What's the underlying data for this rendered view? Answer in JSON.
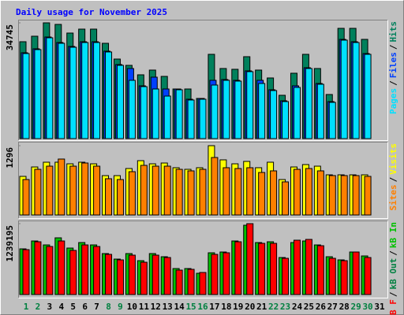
{
  "chart_data": [
    {
      "type": "bar",
      "title": "Daily usage for November 2025",
      "title_color": "#0000ff",
      "ylim": [
        0,
        34745
      ],
      "yticks": [
        34745
      ],
      "legend_separator": "/",
      "series": [
        {
          "name": "Hits",
          "color": "#00805c",
          "values": [
            29077,
            30732,
            34745,
            34278,
            31678,
            32860,
            32860,
            28604,
            23876,
            21985,
            19148,
            20567,
            18676,
            14893,
            14893,
            12056,
            25295,
            21040,
            20803,
            24586,
            20567,
            18203,
            13002,
            19621,
            25295,
            21040,
            13238,
            33096,
            33096,
            29786,
            null
          ]
        },
        {
          "name": "Files",
          "color": "#0040ff",
          "values": [
            25768,
            26950,
            30496,
            28841,
            27659,
            29077,
            29077,
            26240,
            22222,
            21040,
            15839,
            18440,
            14893,
            14893,
            11820,
            12056,
            17494,
            17731,
            17494,
            20330,
            17494,
            14657,
            11347,
            15839,
            21276,
            16548,
            11111,
            29786,
            29077,
            25531,
            null
          ]
        },
        {
          "name": "Pages",
          "color": "#00e0ff",
          "values": [
            25531,
            26713,
            30259,
            28604,
            27422,
            28841,
            28841,
            26004,
            21985,
            17494,
            15602,
            14893,
            12766,
            14657,
            11584,
            11820,
            16075,
            17494,
            17257,
            20094,
            16548,
            14420,
            11111,
            15366,
            21040,
            16312,
            10874,
            29550,
            28841,
            25295,
            null
          ]
        }
      ]
    },
    {
      "type": "bar",
      "ylim": [
        0,
        1296
      ],
      "yticks": [
        1296
      ],
      "legend_separator": "/",
      "series": [
        {
          "name": "Visits",
          "color": "#ffff00",
          "values": [
            722,
            898,
            987,
            987,
            957,
            987,
            957,
            736,
            736,
            869,
            1016,
            957,
            972,
            884,
            854,
            884,
            1296,
            1031,
            957,
            1002,
            884,
            987,
            663,
            898,
            943,
            913,
            751,
            751,
            751,
            751,
            null
          ]
        },
        {
          "name": "Sites",
          "color": "#ff8000",
          "values": [
            663,
            854,
            913,
            1046,
            913,
            972,
            913,
            678,
            663,
            810,
            928,
            913,
            913,
            854,
            825,
            854,
            1075,
            884,
            869,
            884,
            795,
            825,
            619,
            854,
            869,
            825,
            737,
            737,
            737,
            722,
            null
          ]
        }
      ]
    },
    {
      "type": "bar",
      "ylim": [
        0,
        1239195
      ],
      "yticks": [
        1239195
      ],
      "legend_separator": "/",
      "categories": [
        "1",
        "2",
        "3",
        "4",
        "5",
        "6",
        "7",
        "8",
        "9",
        "10",
        "11",
        "12",
        "13",
        "14",
        "15",
        "16",
        "17",
        "18",
        "19",
        "20",
        "21",
        "22",
        "23",
        "24",
        "25",
        "26",
        "27",
        "28",
        "29",
        "30",
        "31"
      ],
      "category_colors": [
        "#008040",
        "#008040",
        "#000000",
        "#000000",
        "#000000",
        "#000000",
        "#000000",
        "#008040",
        "#008040",
        "#000000",
        "#000000",
        "#000000",
        "#000000",
        "#000000",
        "#008040",
        "#008040",
        "#000000",
        "#000000",
        "#000000",
        "#000000",
        "#000000",
        "#008040",
        "#008040",
        "#000000",
        "#000000",
        "#000000",
        "#000000",
        "#000000",
        "#008040",
        "#008040",
        "#000000"
      ],
      "series": [
        {
          "name": "kB In",
          "color": "#00c000",
          "values": [
            798602,
            936292,
            867447,
            991368,
            812371,
            908754,
            867447,
            715988,
            619605,
            715988,
            592067,
            715988,
            660912,
            454377,
            454377,
            371763,
            729757,
            743526,
            936292,
            1211672,
            908754,
            922523,
            647143,
            908754,
            936292,
            867447,
            660912,
            605836,
            743526,
            674681,
            null
          ]
        },
        {
          "name": "kB Out",
          "color": "#008040",
          "values": [
            null,
            null,
            null,
            null,
            null,
            null,
            null,
            null,
            null,
            null,
            null,
            null,
            null,
            null,
            null,
            null,
            null,
            null,
            null,
            null,
            null,
            null,
            null,
            null,
            null,
            null,
            null,
            null,
            null,
            null,
            null
          ]
        },
        {
          "name": "kB F",
          "color": "#ff0000",
          "values": [
            784833,
            922523,
            839909,
            936292,
            771064,
            867447,
            839909,
            702219,
            605836,
            688450,
            564529,
            688450,
            647143,
            426839,
            440608,
            385532,
            702219,
            729757,
            922523,
            1239195,
            894985,
            894985,
            633374,
            950061,
            963830,
            853678,
            633374,
            592067,
            743526,
            647143,
            null
          ]
        }
      ]
    }
  ]
}
